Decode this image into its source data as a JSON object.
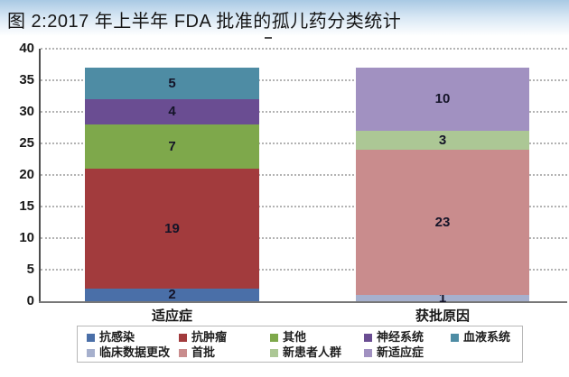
{
  "title": "图 2:2017 年上半年 FDA 批准的孤儿药分类统计",
  "chart_data": {
    "type": "bar",
    "stacked": true,
    "title": "图 2:2017 年上半年 FDA 批准的孤儿药分类统计",
    "categories": [
      "适应症",
      "获批原因"
    ],
    "ylim": [
      0,
      40
    ],
    "yticks": [
      0,
      5,
      10,
      15,
      20,
      25,
      30,
      35,
      40
    ],
    "grid": "horizontal-dotted",
    "legend_position": "bottom",
    "bar_totals": [
      37,
      37
    ],
    "series": [
      {
        "name": "抗感染",
        "color": "#4a6fa8",
        "values": [
          2,
          0
        ]
      },
      {
        "name": "抗肿瘤",
        "color": "#a23b3d",
        "values": [
          19,
          0
        ]
      },
      {
        "name": "其他",
        "color": "#7ea84b",
        "values": [
          7,
          0
        ]
      },
      {
        "name": "神经系统",
        "color": "#6a4d92",
        "values": [
          4,
          0
        ]
      },
      {
        "name": "血液系统",
        "color": "#4e8ca4",
        "values": [
          5,
          0
        ]
      },
      {
        "name": "临床数据更改",
        "color": "#a6b0cd",
        "values": [
          0,
          1
        ]
      },
      {
        "name": "首批",
        "color": "#c98c8d",
        "values": [
          0,
          23
        ]
      },
      {
        "name": "新患者人群",
        "color": "#acc795",
        "values": [
          0,
          3
        ]
      },
      {
        "name": "新适应症",
        "color": "#a191c1",
        "values": [
          0,
          10
        ]
      }
    ]
  },
  "colors": {
    "axis_text": "#191919",
    "value_label": "#141428",
    "gridline": "#b3b3b3",
    "title_gradient_top": "#a9c9e4"
  }
}
